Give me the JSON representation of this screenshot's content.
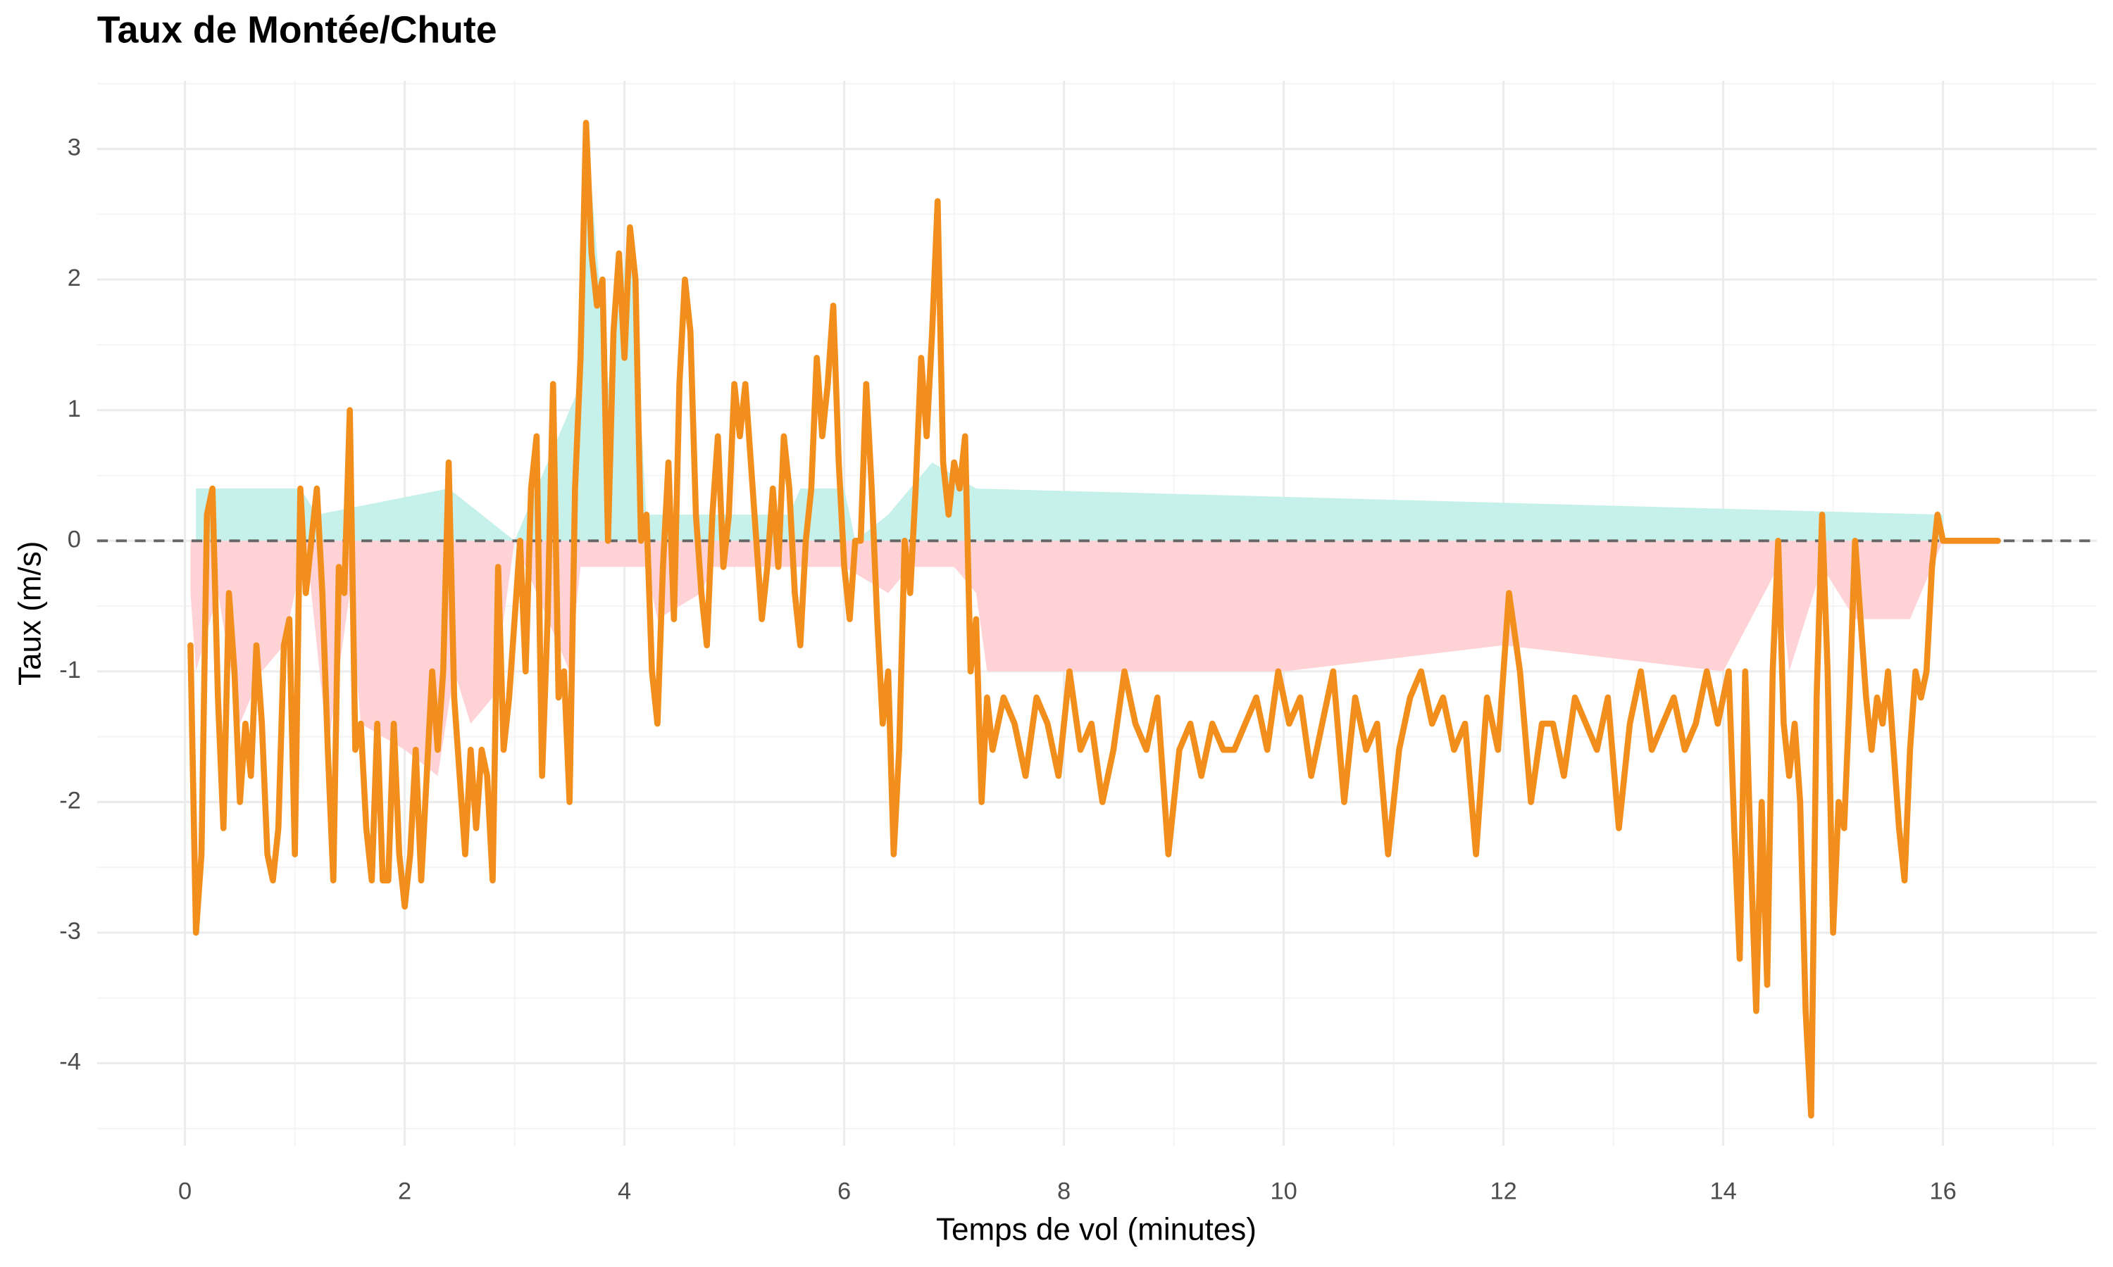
{
  "chart_data": {
    "type": "line",
    "title": "Taux de Montée/Chute",
    "x_label": "Temps de vol (minutes)",
    "y_label": "Taux (m/s)",
    "xlim": [
      -0.8,
      17.4
    ],
    "ylim": [
      -4.63,
      3.52
    ],
    "xticks": [
      0,
      2,
      4,
      6,
      8,
      10,
      12,
      14,
      16
    ],
    "yticks": [
      -4,
      -3,
      -2,
      -1,
      0,
      1,
      2,
      3
    ],
    "minor_xticks": [
      1,
      3,
      5,
      7,
      9,
      11,
      13,
      15,
      17
    ],
    "minor_yticks": [
      -4.5,
      -3.5,
      -2.5,
      -1.5,
      -0.5,
      0.5,
      1.5,
      2.5,
      3.5
    ],
    "grid": true,
    "hline": 0,
    "series": [
      {
        "type": "area",
        "color": "#c6f0ea",
        "x": [
          0.1,
          0.25,
          1.05,
          1.2,
          2.4,
          3.0,
          3.2,
          3.4,
          3.6,
          3.65,
          3.85,
          4.05,
          4.2,
          5.5,
          5.6,
          6.0,
          6.1,
          6.4,
          6.8,
          7.2,
          16.0
        ],
        "values": [
          0.4,
          0.4,
          0.4,
          0.2,
          0.4,
          0.0,
          0.4,
          0.8,
          1.2,
          3.2,
          1.2,
          2.4,
          0.2,
          0.2,
          0.4,
          0.4,
          0.0,
          0.2,
          0.6,
          0.4,
          0.2
        ]
      },
      {
        "type": "area",
        "color": "#ffd3d6",
        "x": [
          0.05,
          0.1,
          0.3,
          0.5,
          0.7,
          0.9,
          1.1,
          1.3,
          1.5,
          1.6,
          2.0,
          2.3,
          2.45,
          2.6,
          2.8,
          3.0,
          3.3,
          3.5,
          3.6,
          4.2,
          4.3,
          4.7,
          4.8,
          5.5,
          6.0,
          6.4,
          6.6,
          7.0,
          7.2,
          7.3,
          8.0,
          10.0,
          12.0,
          14.0,
          14.5,
          14.6,
          14.9,
          15.2,
          15.7,
          15.9,
          16.0
        ],
        "values": [
          -0.4,
          -1.0,
          -0.4,
          -1.4,
          -1.0,
          -0.8,
          0.0,
          -1.6,
          -0.4,
          -1.4,
          -1.6,
          -1.8,
          -1.0,
          -1.4,
          -1.2,
          0.0,
          -0.6,
          -1.0,
          -0.2,
          -0.2,
          -0.6,
          -0.4,
          -0.2,
          -0.2,
          -0.2,
          -0.4,
          -0.2,
          -0.2,
          -0.4,
          -1.0,
          -1.0,
          -1.0,
          -0.8,
          -1.0,
          -0.2,
          -1.0,
          -0.2,
          -0.6,
          -0.6,
          -0.2,
          0.0
        ]
      },
      {
        "type": "line",
        "color": "#f28e1c",
        "x": [
          0.05,
          0.1,
          0.15,
          0.2,
          0.25,
          0.3,
          0.35,
          0.4,
          0.45,
          0.5,
          0.55,
          0.6,
          0.65,
          0.7,
          0.75,
          0.8,
          0.85,
          0.9,
          0.95,
          1.0,
          1.05,
          1.1,
          1.15,
          1.2,
          1.25,
          1.3,
          1.35,
          1.4,
          1.45,
          1.5,
          1.55,
          1.6,
          1.65,
          1.7,
          1.75,
          1.8,
          1.85,
          1.9,
          1.95,
          2.0,
          2.05,
          2.1,
          2.15,
          2.2,
          2.25,
          2.3,
          2.35,
          2.4,
          2.45,
          2.5,
          2.55,
          2.6,
          2.65,
          2.7,
          2.75,
          2.8,
          2.85,
          2.9,
          2.95,
          3.0,
          3.05,
          3.1,
          3.15,
          3.2,
          3.25,
          3.3,
          3.35,
          3.4,
          3.45,
          3.5,
          3.55,
          3.6,
          3.65,
          3.7,
          3.75,
          3.8,
          3.85,
          3.9,
          3.95,
          4.0,
          4.05,
          4.1,
          4.15,
          4.2,
          4.25,
          4.3,
          4.35,
          4.4,
          4.45,
          4.5,
          4.55,
          4.6,
          4.65,
          4.7,
          4.75,
          4.8,
          4.85,
          4.9,
          4.95,
          5.0,
          5.05,
          5.1,
          5.15,
          5.2,
          5.25,
          5.3,
          5.35,
          5.4,
          5.45,
          5.5,
          5.55,
          5.6,
          5.65,
          5.7,
          5.75,
          5.8,
          5.85,
          5.9,
          5.95,
          6.0,
          6.05,
          6.1,
          6.15,
          6.2,
          6.25,
          6.3,
          6.35,
          6.4,
          6.45,
          6.5,
          6.55,
          6.6,
          6.65,
          6.7,
          6.75,
          6.8,
          6.85,
          6.9,
          6.95,
          7.0,
          7.05,
          7.1,
          7.15,
          7.2,
          7.25,
          7.3,
          7.35,
          7.45,
          7.55,
          7.65,
          7.75,
          7.85,
          7.95,
          8.05,
          8.15,
          8.25,
          8.35,
          8.45,
          8.55,
          8.65,
          8.75,
          8.85,
          8.95,
          9.05,
          9.15,
          9.25,
          9.35,
          9.45,
          9.55,
          9.65,
          9.75,
          9.85,
          9.95,
          10.05,
          10.15,
          10.25,
          10.35,
          10.45,
          10.55,
          10.65,
          10.75,
          10.85,
          10.95,
          11.05,
          11.15,
          11.25,
          11.35,
          11.45,
          11.55,
          11.65,
          11.75,
          11.85,
          11.95,
          12.05,
          12.15,
          12.25,
          12.35,
          12.45,
          12.55,
          12.65,
          12.75,
          12.85,
          12.95,
          13.05,
          13.15,
          13.25,
          13.35,
          13.45,
          13.55,
          13.65,
          13.75,
          13.85,
          13.95,
          14.05,
          14.1,
          14.15,
          14.2,
          14.25,
          14.3,
          14.35,
          14.4,
          14.45,
          14.5,
          14.55,
          14.6,
          14.65,
          14.7,
          14.75,
          14.8,
          14.85,
          14.9,
          14.95,
          15.0,
          15.05,
          15.1,
          15.15,
          15.2,
          15.25,
          15.3,
          15.35,
          15.4,
          15.45,
          15.5,
          15.55,
          15.6,
          15.65,
          15.7,
          15.75,
          15.8,
          15.85,
          15.9,
          15.95,
          16.0,
          16.5
        ],
        "values": [
          -0.8,
          -3.0,
          -2.4,
          0.2,
          0.4,
          -1.2,
          -2.2,
          -0.4,
          -1.0,
          -2.0,
          -1.4,
          -1.8,
          -0.8,
          -1.4,
          -2.4,
          -2.6,
          -2.2,
          -0.8,
          -0.6,
          -2.4,
          0.4,
          -0.4,
          0.0,
          0.4,
          -0.4,
          -1.6,
          -2.6,
          -0.2,
          -0.4,
          1.0,
          -1.6,
          -1.4,
          -2.2,
          -2.6,
          -1.4,
          -2.6,
          -2.6,
          -1.4,
          -2.4,
          -2.8,
          -2.4,
          -1.6,
          -2.6,
          -1.8,
          -1.0,
          -1.6,
          -1.0,
          0.6,
          -1.2,
          -1.8,
          -2.4,
          -1.6,
          -2.2,
          -1.6,
          -1.8,
          -2.6,
          -0.2,
          -1.6,
          -1.2,
          -0.6,
          0.0,
          -1.0,
          0.4,
          0.8,
          -1.8,
          -0.6,
          1.2,
          -1.2,
          -1.0,
          -2.0,
          0.4,
          1.4,
          3.2,
          2.2,
          1.8,
          2.0,
          0.0,
          1.6,
          2.2,
          1.4,
          2.4,
          2.0,
          0.0,
          0.2,
          -1.0,
          -1.4,
          -0.2,
          0.6,
          -0.6,
          1.2,
          2.0,
          1.6,
          0.2,
          -0.4,
          -0.8,
          0.2,
          0.8,
          -0.2,
          0.2,
          1.2,
          0.8,
          1.2,
          0.6,
          0.0,
          -0.6,
          -0.2,
          0.4,
          -0.2,
          0.8,
          0.4,
          -0.4,
          -0.8,
          0.0,
          0.4,
          1.4,
          0.8,
          1.2,
          1.8,
          0.6,
          -0.2,
          -0.6,
          0.0,
          0.0,
          1.2,
          0.4,
          -0.6,
          -1.4,
          -1.0,
          -2.4,
          -1.6,
          0.0,
          -0.4,
          0.4,
          1.4,
          0.8,
          1.6,
          2.6,
          0.6,
          0.2,
          0.6,
          0.4,
          0.8,
          -1.0,
          -0.6,
          -2.0,
          -1.2,
          -1.6,
          -1.2,
          -1.4,
          -1.8,
          -1.2,
          -1.4,
          -1.8,
          -1.0,
          -1.6,
          -1.4,
          -2.0,
          -1.6,
          -1.0,
          -1.4,
          -1.6,
          -1.2,
          -2.4,
          -1.6,
          -1.4,
          -1.8,
          -1.4,
          -1.6,
          -1.6,
          -1.4,
          -1.2,
          -1.6,
          -1.0,
          -1.4,
          -1.2,
          -1.8,
          -1.4,
          -1.0,
          -2.0,
          -1.2,
          -1.6,
          -1.4,
          -2.4,
          -1.6,
          -1.2,
          -1.0,
          -1.4,
          -1.2,
          -1.6,
          -1.4,
          -2.4,
          -1.2,
          -1.6,
          -0.4,
          -1.0,
          -2.0,
          -1.4,
          -1.4,
          -1.8,
          -1.2,
          -1.4,
          -1.6,
          -1.2,
          -2.2,
          -1.4,
          -1.0,
          -1.6,
          -1.4,
          -1.2,
          -1.6,
          -1.4,
          -1.0,
          -1.4,
          -1.0,
          -2.2,
          -3.2,
          -1.0,
          -2.4,
          -3.6,
          -2.0,
          -3.4,
          -1.0,
          0.0,
          -1.4,
          -1.8,
          -1.4,
          -2.0,
          -3.6,
          -4.4,
          -1.2,
          0.2,
          -1.0,
          -3.0,
          -2.0,
          -2.2,
          -1.2,
          0.0,
          -0.6,
          -1.2,
          -1.6,
          -1.2,
          -1.4,
          -1.0,
          -1.6,
          -2.2,
          -2.6,
          -1.6,
          -1.0,
          -1.2,
          -1.0,
          -0.2,
          0.2,
          0.0,
          0.0
        ]
      }
    ]
  }
}
